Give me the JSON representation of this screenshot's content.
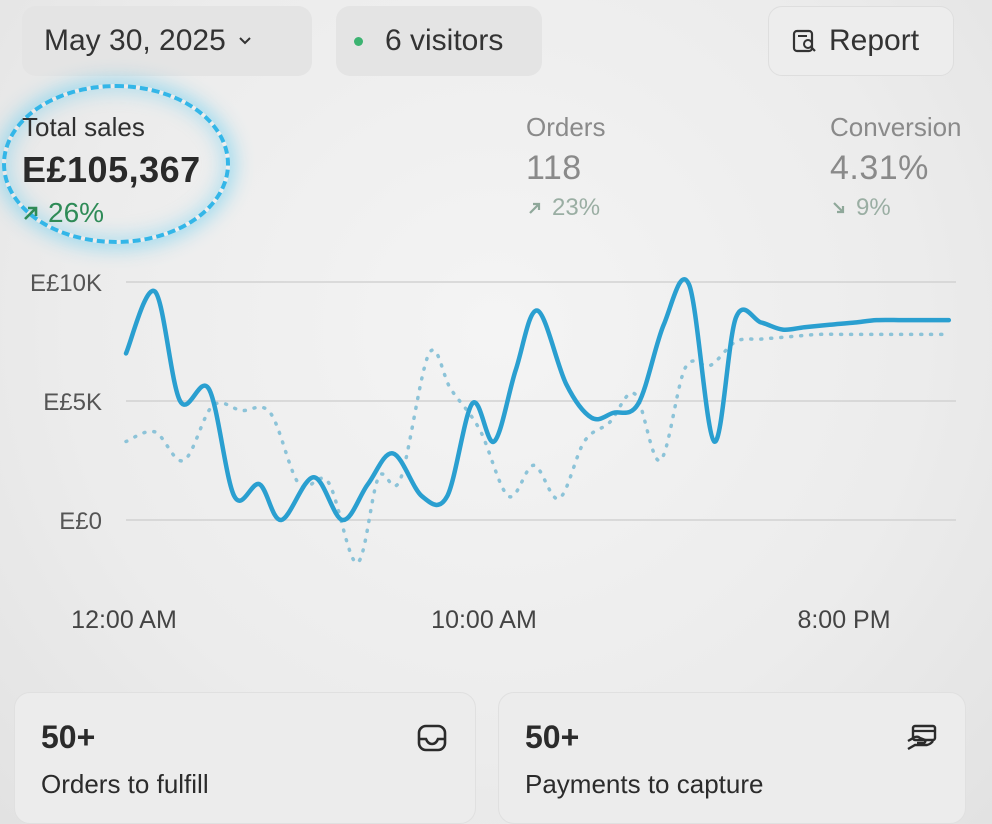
{
  "header": {
    "date": "May 30, 2025",
    "visitors": "6 visitors",
    "report_label": "Report"
  },
  "metrics": [
    {
      "label": "Total sales",
      "value": "E£105,367",
      "change": "26%",
      "direction": "up",
      "highlighted": true
    },
    {
      "label": "Orders",
      "value": "118",
      "change": "23%",
      "direction": "up"
    },
    {
      "label": "Conversion",
      "value": "4.31%",
      "change": "9%",
      "direction": "down"
    }
  ],
  "chart_data": {
    "type": "line",
    "y_ticks": [
      "E£10K",
      "E£5K",
      "E£0"
    ],
    "x_ticks": [
      "12:00 AM",
      "10:00 AM",
      "8:00 PM"
    ],
    "ylim": [
      0,
      10000
    ],
    "xlim": [
      0,
      23
    ],
    "grid": true,
    "series": [
      {
        "style": "solid",
        "color": "#2a9fd0",
        "x": [
          0,
          0.8,
          1.5,
          2.3,
          3.0,
          3.7,
          4.3,
          5.2,
          6.0,
          6.7,
          7.4,
          8.2,
          8.9,
          9.6,
          10.2,
          10.8,
          11.4,
          12.2,
          12.9,
          13.5,
          14.2,
          14.9,
          15.6,
          16.3,
          16.9,
          17.6,
          18.2,
          18.8,
          19.5,
          20.2,
          20.8,
          21.5,
          22.1,
          22.8
        ],
        "y": [
          7000,
          9600,
          5000,
          5500,
          1000,
          1500,
          0,
          1800,
          0,
          1500,
          2800,
          1000,
          1000,
          4900,
          3300,
          6300,
          8800,
          5700,
          4300,
          4500,
          4900,
          8200,
          9900,
          3300,
          8500,
          8300,
          8000,
          8100,
          8200,
          8300,
          8400,
          8400,
          8400,
          8400
        ]
      },
      {
        "style": "dotted",
        "color": "#8cc3d8",
        "x": [
          0,
          0.8,
          1.6,
          2.4,
          3.2,
          4.0,
          4.8,
          5.6,
          6.4,
          7.0,
          7.6,
          8.4,
          9.0,
          9.8,
          10.6,
          11.3,
          12.0,
          12.7,
          13.4,
          14.1,
          14.8,
          15.5,
          16.2,
          16.9,
          17.6,
          18.4,
          19.2,
          20.0,
          20.8,
          21.5,
          22.2,
          22.8
        ],
        "y": [
          3300,
          3700,
          2500,
          4800,
          4600,
          4500,
          1500,
          1600,
          -1800,
          1800,
          1700,
          7000,
          5500,
          3800,
          1000,
          2300,
          900,
          3300,
          4100,
          5300,
          2500,
          6400,
          6500,
          7500,
          7600,
          7700,
          7800,
          7800,
          7800,
          7800,
          7800,
          7800
        ]
      }
    ]
  },
  "cards": [
    {
      "value": "50+",
      "label": "Orders to fulfill",
      "icon": "inbox-icon"
    },
    {
      "value": "50+",
      "label": "Payments to capture",
      "icon": "hand-payment-icon"
    }
  ]
}
